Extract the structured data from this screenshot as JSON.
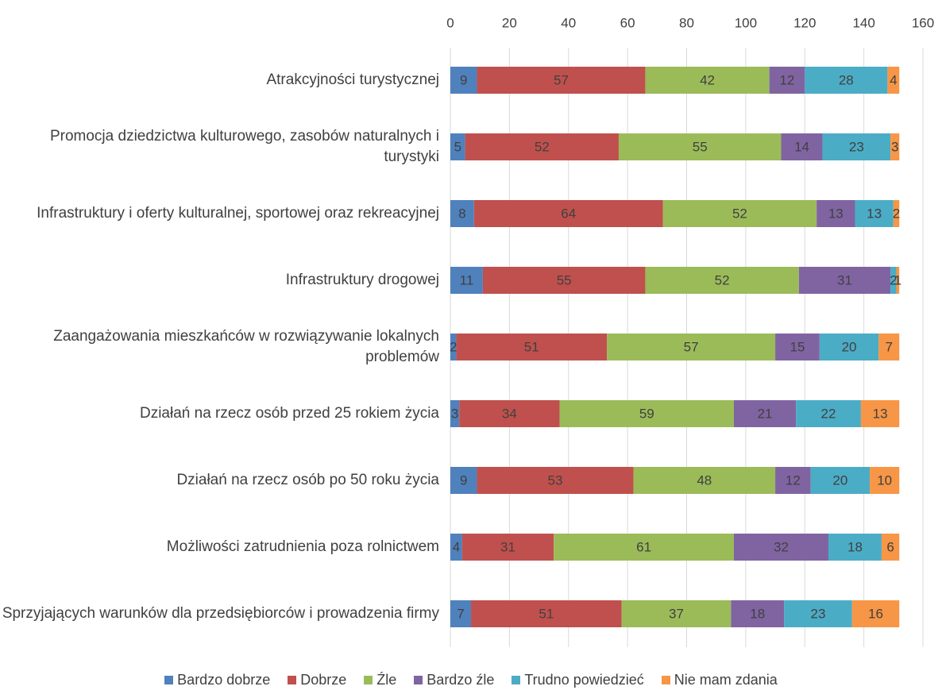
{
  "chart_data": {
    "type": "stacked_bar_horizontal",
    "categories": [
      "Atrakcyjności turystycznej",
      "Promocja dziedzictwa kulturowego, zasobów naturalnych i turystyki",
      "Infrastruktury i oferty kulturalnej, sportowej oraz rekreacyjnej",
      "Infrastruktury drogowej",
      "Zaangażowania mieszkańców w rozwiązywanie lokalnych problemów",
      "Działań na rzecz osób przed 25 rokiem życia",
      "Działań na rzecz osób po 50 roku życia",
      "Możliwości zatrudnienia poza rolnictwem",
      "Sprzyjających warunków dla przedsiębiorców i prowadzenia firmy"
    ],
    "series": [
      {
        "name": "Bardzo dobrze",
        "color": "#4f81bd",
        "values": [
          9,
          5,
          8,
          11,
          2,
          3,
          9,
          4,
          7
        ]
      },
      {
        "name": "Dobrze",
        "color": "#c0504d",
        "values": [
          57,
          52,
          64,
          55,
          51,
          34,
          53,
          31,
          51
        ]
      },
      {
        "name": "Źle",
        "color": "#9bbb59",
        "values": [
          42,
          55,
          52,
          52,
          57,
          59,
          48,
          61,
          37
        ]
      },
      {
        "name": "Bardzo źle",
        "color": "#8064a2",
        "values": [
          12,
          14,
          13,
          31,
          15,
          21,
          12,
          32,
          18
        ]
      },
      {
        "name": "Trudno powiedzieć",
        "color": "#4bacc6",
        "values": [
          28,
          23,
          13,
          2,
          20,
          22,
          20,
          18,
          23
        ]
      },
      {
        "name": "Nie mam zdania",
        "color": "#f79646",
        "values": [
          4,
          3,
          2,
          1,
          7,
          13,
          10,
          6,
          16
        ]
      }
    ],
    "xlim": [
      0,
      160
    ],
    "xticks": [
      0,
      20,
      40,
      60,
      80,
      100,
      120,
      140,
      160
    ],
    "grid": true,
    "legend": "bottom"
  }
}
